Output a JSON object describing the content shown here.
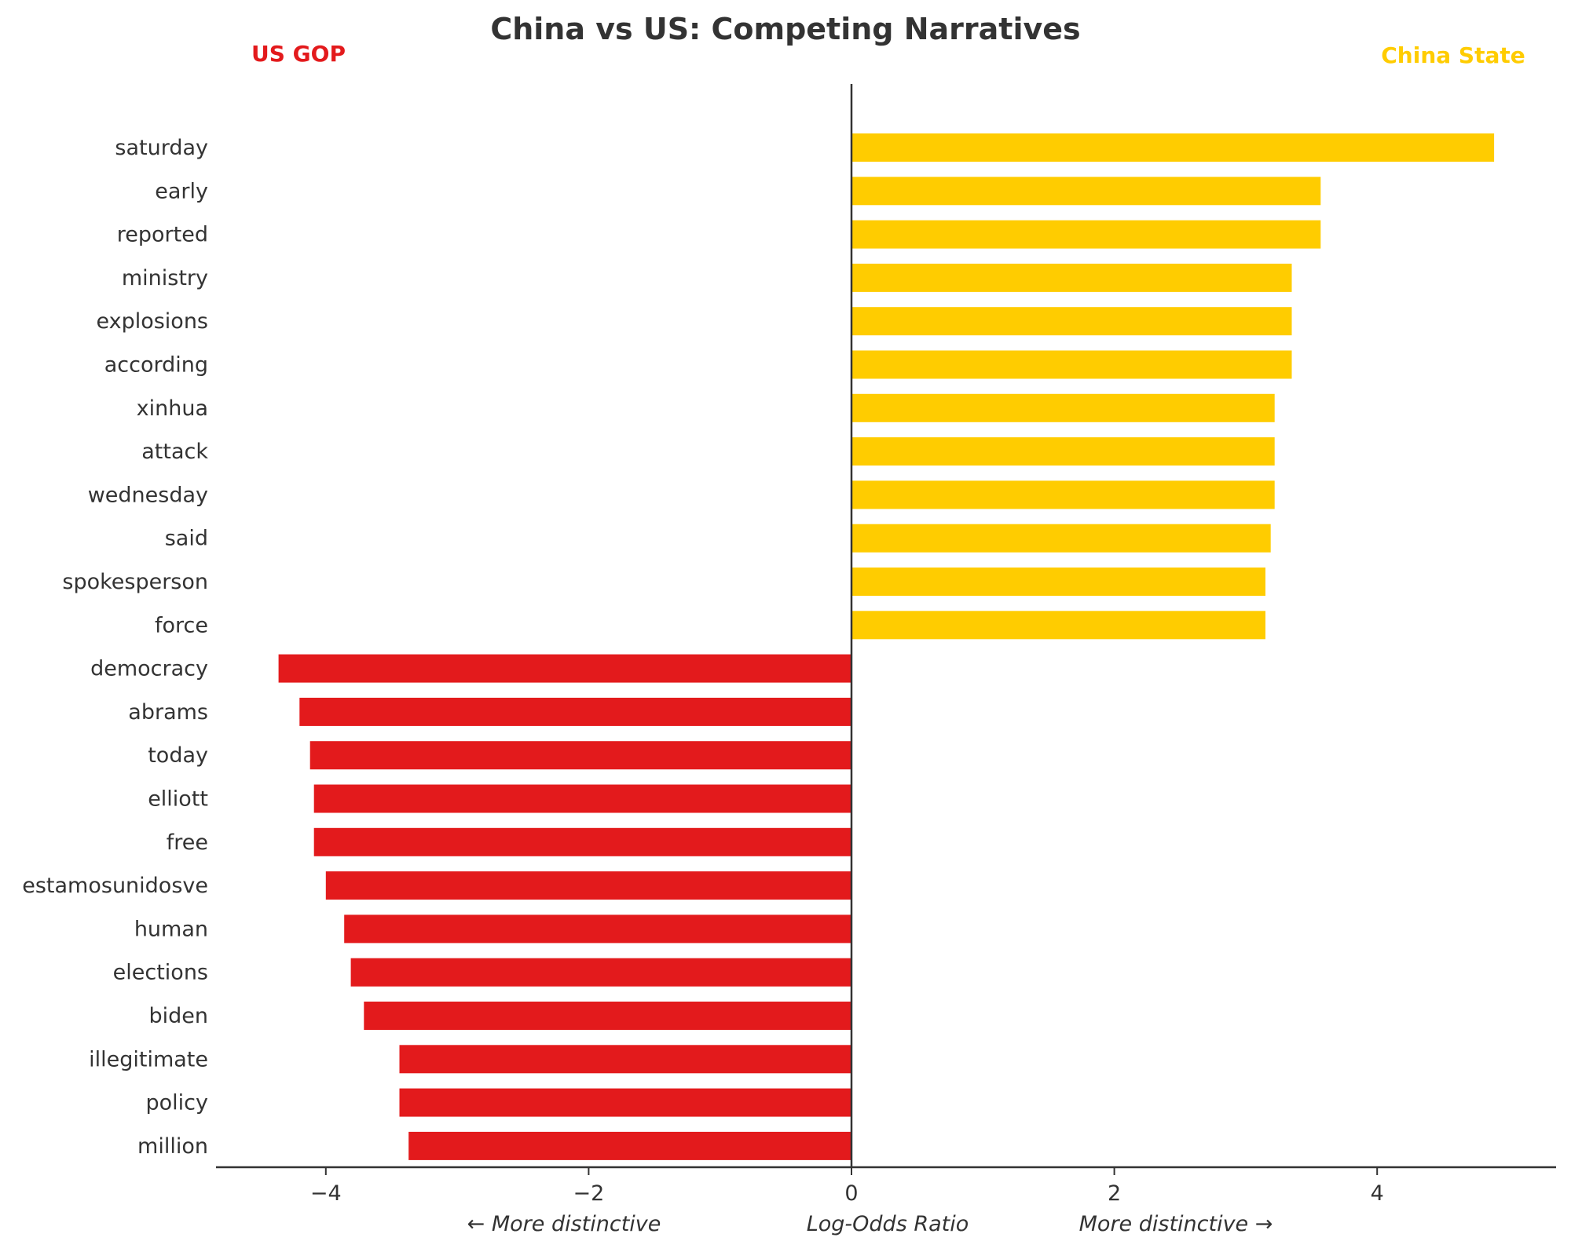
{
  "chart_data": {
    "type": "bar",
    "orientation": "horizontal",
    "title": "China vs US: Competing Narratives",
    "left_group_label": "US GOP",
    "right_group_label": "China State",
    "xlabel": "Log-Odds Ratio",
    "xlabel_left": "← More distinctive",
    "xlabel_right": "More distinctive →",
    "xlim": [
      -4.84,
      5.36
    ],
    "xticks": [
      -4,
      -2,
      0,
      2,
      4
    ],
    "xtick_labels": [
      "−4",
      "−2",
      "0",
      "2",
      "4"
    ],
    "grid": false,
    "colors": {
      "negative": "#e31a1c",
      "positive": "#ffcc00",
      "text": "#333333"
    },
    "categories": [
      "saturday",
      "early",
      "reported",
      "ministry",
      "explosions",
      "according",
      "xinhua",
      "attack",
      "wednesday",
      "said",
      "spokesperson",
      "force",
      "democracy",
      "abrams",
      "today",
      "elliott",
      "free",
      "estamosunidosve",
      "human",
      "elections",
      "biden",
      "illegitimate",
      "policy",
      "million"
    ],
    "values": [
      4.89,
      3.57,
      3.57,
      3.35,
      3.35,
      3.35,
      3.22,
      3.22,
      3.22,
      3.19,
      3.15,
      3.15,
      -4.36,
      -4.2,
      -4.12,
      -4.09,
      -4.09,
      -4.0,
      -3.86,
      -3.81,
      -3.71,
      -3.44,
      -3.44,
      -3.37
    ]
  }
}
